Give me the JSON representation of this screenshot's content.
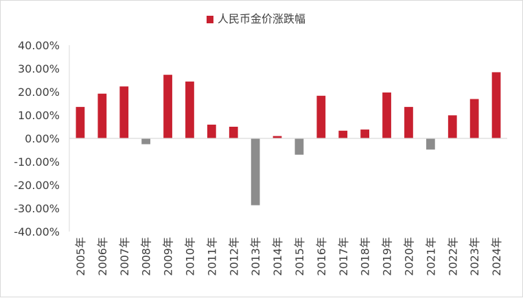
{
  "chart_data": {
    "type": "bar",
    "legend": {
      "label": "人民币金价涨跌幅",
      "position": "top"
    },
    "categories": [
      "2005年",
      "2006年",
      "2007年",
      "2008年",
      "2009年",
      "2010年",
      "2011年",
      "2012年",
      "2013年",
      "2014年",
      "2015年",
      "2016年",
      "2017年",
      "2018年",
      "2019年",
      "2020年",
      "2021年",
      "2022年",
      "2023年",
      "2024年"
    ],
    "series": [
      {
        "name": "人民币金价涨跌幅",
        "values": [
          13.5,
          19.2,
          22.3,
          -2.5,
          27.3,
          24.4,
          5.9,
          5.0,
          -28.7,
          1.0,
          -7.0,
          18.3,
          3.3,
          3.8,
          19.7,
          13.5,
          -4.8,
          9.9,
          16.9,
          28.4
        ]
      }
    ],
    "yticks": [
      "40.00%",
      "30.00%",
      "20.00%",
      "10.00%",
      "0.00%",
      "-10.00%",
      "-20.00%",
      "-30.00%",
      "-40.00%"
    ],
    "ylim": [
      -40,
      40
    ],
    "grid": false,
    "colors": {
      "positive": "#c8202f",
      "negative": "#8c8c8c"
    }
  }
}
